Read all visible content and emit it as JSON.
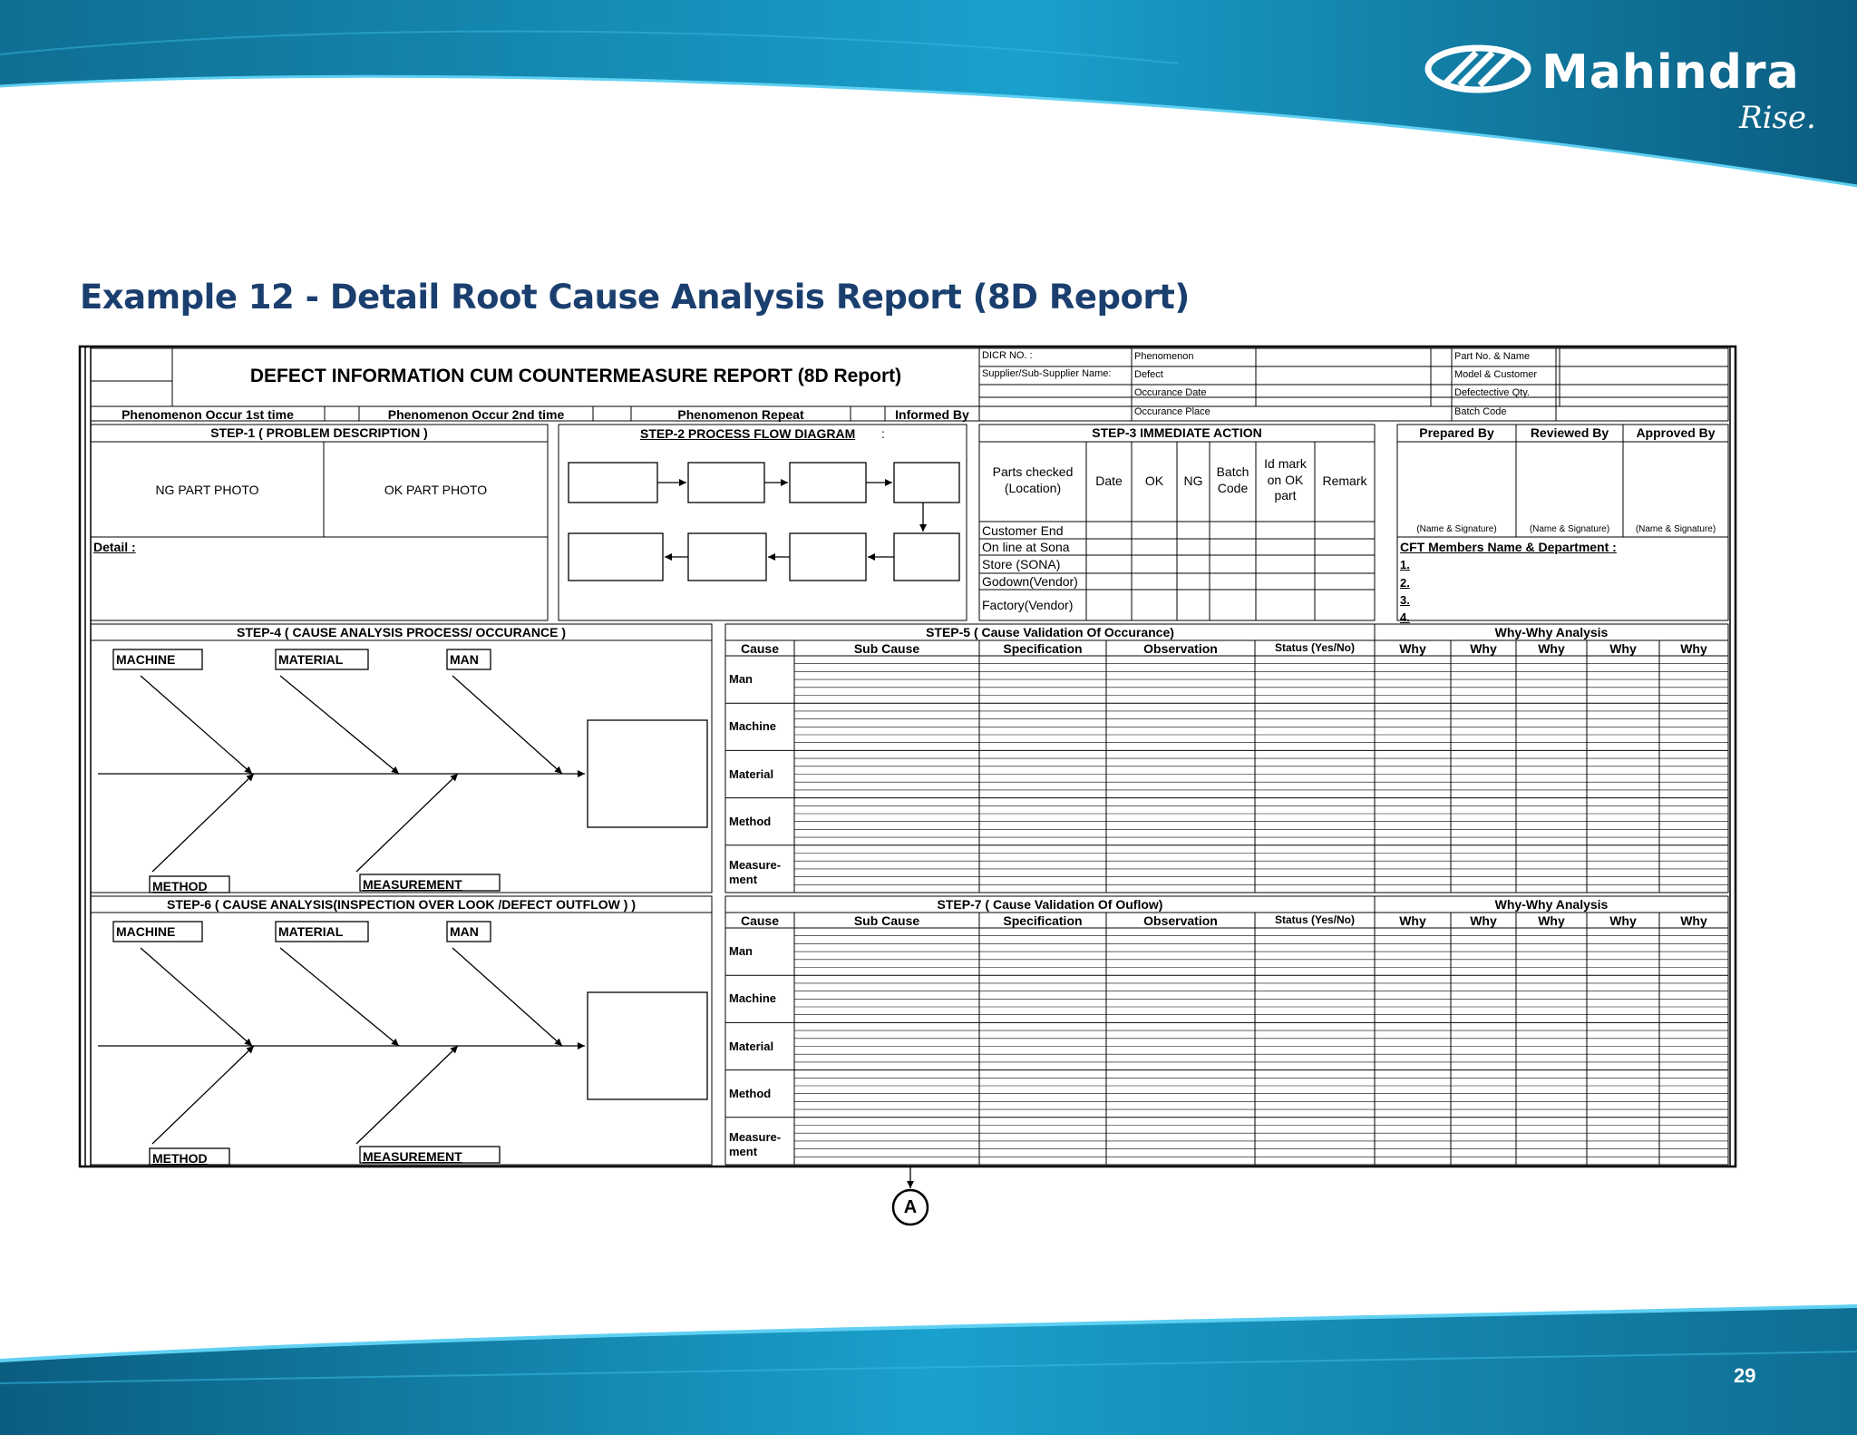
{
  "brand": {
    "name": "Mahindra",
    "tagline": "Rise."
  },
  "slide": {
    "title": "Example 12 - Detail Root Cause Analysis Report (8D Report)",
    "page_number": "29"
  },
  "form": {
    "title": "DEFECT INFORMATION CUM COUNTERMEASURE  REPORT (8D Report)",
    "info_left": [
      "DICR  NO. :",
      "Supplier/Sub-Supplier Name:"
    ],
    "info_mid": [
      "Phenomenon",
      "Defect",
      "Occurance Date",
      "Occurance Place"
    ],
    "info_right": [
      "Part No. & Name",
      "Model & Customer",
      "Defectective Qty.",
      "Batch Code"
    ],
    "phenomenon_row": [
      "Phenomenon Occur 1st time",
      "Phenomenon Occur 2nd time",
      "Phenomenon Repeat",
      "Informed By"
    ],
    "step1": {
      "title": "STEP-1 ( PROBLEM DESCRIPTION )",
      "ng_photo": "NG PART PHOTO",
      "ok_photo": "OK PART PHOTO",
      "detail": "Detail :"
    },
    "step2": {
      "title": "STEP-2 PROCESS FLOW DIAGRAM",
      "suffix": ":"
    },
    "step3": {
      "title": "STEP-3 IMMEDIATE  ACTION",
      "col_parts": "Parts checked (Location)",
      "col_date": "Date",
      "col_ok": "OK",
      "col_ng": "NG",
      "col_batch": "Batch Code",
      "col_idmark": "Id mark on OK part",
      "col_remark": "Remark",
      "locations": [
        "Customer End",
        "On line at Sona",
        "Store (SONA)",
        "Godown(Vendor)",
        "Factory(Vendor)"
      ]
    },
    "approvals": {
      "headers": [
        "Prepared By",
        "Reviewed By",
        "Approved By"
      ],
      "signature": "(Name & Signature)"
    },
    "cft": {
      "title": "CFT Members Name & Department :",
      "items": [
        "1.",
        "2.",
        "3.",
        "4."
      ]
    },
    "step4": {
      "title": "STEP-4 ( CAUSE ANALYSIS PROCESS/ OCCURANCE )"
    },
    "step6": {
      "title": "STEP-6 ( CAUSE ANALYSIS(INSPECTION OVER LOOK /DEFECT OUTFLOW ) )"
    },
    "fishbone": {
      "top": [
        "MACHINE",
        "MATERIAL",
        "MAN"
      ],
      "bottom": [
        "METHOD",
        "MEASUREMENT"
      ]
    },
    "step5": {
      "title": "STEP-5 ( Cause Validation Of Occurance)"
    },
    "step7": {
      "title": "STEP-7 ( Cause Validation Of Ouflow)"
    },
    "why_title": "Why-Why Analysis",
    "validation_cols": [
      "Cause",
      "Sub Cause",
      "Specification",
      "Observation",
      "Status (Yes/No)"
    ],
    "why_cols": [
      "Why",
      "Why",
      "Why",
      "Why",
      "Why"
    ],
    "causes": [
      "Man",
      "Machine",
      "Material",
      "Method",
      "Measure-\nment"
    ],
    "connector": "A"
  }
}
